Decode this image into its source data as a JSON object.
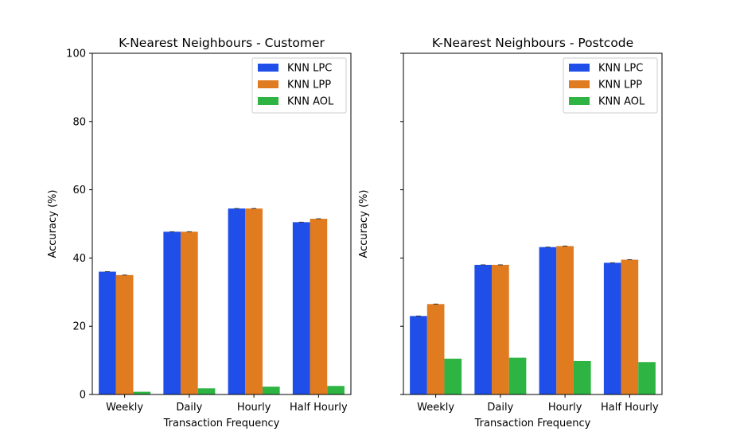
{
  "chart_data": [
    {
      "type": "bar",
      "title": "K-Nearest Neighbours - Customer",
      "xlabel": "Transaction Frequency",
      "ylabel": "Accuracy (%)",
      "ylim": [
        0,
        100
      ],
      "yticks": [
        0,
        20,
        40,
        60,
        80,
        100
      ],
      "show_ytick_labels": true,
      "grid": false,
      "legend_position": "top-right",
      "categories": [
        "Weekly",
        "Daily",
        "Hourly",
        "Half Hourly"
      ],
      "series": [
        {
          "name": "KNN LPC",
          "color": "#1f4fe8",
          "values": [
            36.0,
            47.7,
            54.5,
            50.5
          ]
        },
        {
          "name": "KNN LPP",
          "color": "#e07b20",
          "values": [
            35.0,
            47.7,
            54.5,
            51.5
          ]
        },
        {
          "name": "KNN AOL",
          "color": "#2db443",
          "values": [
            0.8,
            1.8,
            2.3,
            2.5
          ]
        }
      ]
    },
    {
      "type": "bar",
      "title": "K-Nearest Neighbours - Postcode",
      "xlabel": "Transaction Frequency",
      "ylabel": "Accuracy (%)",
      "ylim": [
        0,
        100
      ],
      "yticks": [
        0,
        20,
        40,
        60,
        80,
        100
      ],
      "show_ytick_labels": false,
      "grid": false,
      "legend_position": "top-right",
      "categories": [
        "Weekly",
        "Daily",
        "Hourly",
        "Half Hourly"
      ],
      "series": [
        {
          "name": "KNN LPC",
          "color": "#1f4fe8",
          "values": [
            23.0,
            38.0,
            43.2,
            38.6
          ]
        },
        {
          "name": "KNN LPP",
          "color": "#e07b20",
          "values": [
            26.5,
            38.0,
            43.5,
            39.5
          ]
        },
        {
          "name": "KNN AOL",
          "color": "#2db443",
          "values": [
            10.5,
            10.8,
            9.8,
            9.5
          ]
        }
      ]
    }
  ]
}
